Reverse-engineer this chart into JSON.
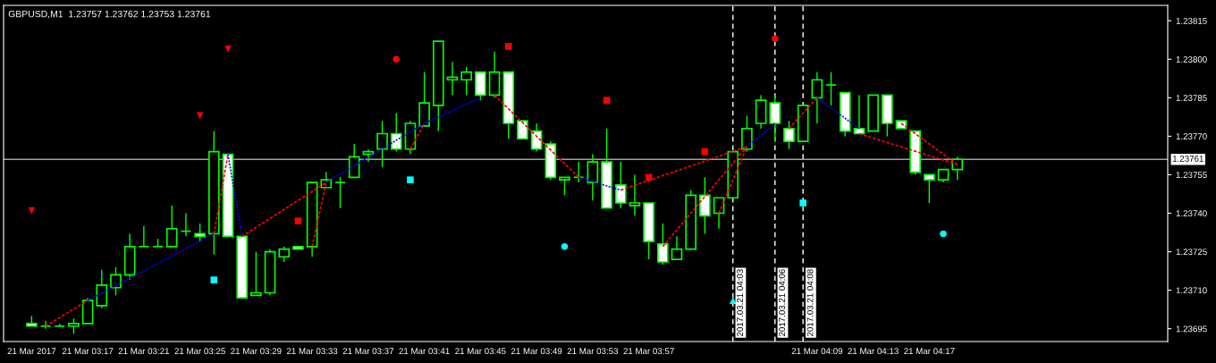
{
  "chart_data": {
    "type": "candlestick",
    "title": "GBPUSD,M1  1.23757 1.23762 1.23753 1.23761",
    "color": "#00ff00",
    "x": [
      "2017-03-21T03:13",
      "2017-03-21T03:14",
      "2017-03-21T03:15",
      "2017-03-21T03:16",
      "2017-03-21T03:17",
      "2017-03-21T03:18",
      "2017-03-21T03:19",
      "2017-03-21T03:20",
      "2017-03-21T03:21",
      "2017-03-21T03:22",
      "2017-03-21T03:23",
      "2017-03-21T03:24",
      "2017-03-21T03:25",
      "2017-03-21T03:26",
      "2017-03-21T03:27",
      "2017-03-21T03:28",
      "2017-03-21T03:29",
      "2017-03-21T03:30",
      "2017-03-21T03:31",
      "2017-03-21T03:32",
      "2017-03-21T03:33",
      "2017-03-21T03:34",
      "2017-03-21T03:35",
      "2017-03-21T03:36",
      "2017-03-21T03:37",
      "2017-03-21T03:38",
      "2017-03-21T03:39",
      "2017-03-21T03:40",
      "2017-03-21T03:41",
      "2017-03-21T03:42",
      "2017-03-21T03:43",
      "2017-03-21T03:44",
      "2017-03-21T03:45",
      "2017-03-21T03:46",
      "2017-03-21T03:47",
      "2017-03-21T03:48",
      "2017-03-21T03:49",
      "2017-03-21T03:50",
      "2017-03-21T03:51",
      "2017-03-21T03:52",
      "2017-03-21T03:53",
      "2017-03-21T03:54",
      "2017-03-21T03:55",
      "2017-03-21T03:56",
      "2017-03-21T03:57",
      "2017-03-21T03:58",
      "2017-03-21T03:59",
      "2017-03-21T04:00",
      "2017-03-21T04:01",
      "2017-03-21T04:02",
      "2017-03-21T04:03",
      "2017-03-21T04:04",
      "2017-03-21T04:05",
      "2017-03-21T04:06",
      "2017-03-21T04:07",
      "2017-03-21T04:08",
      "2017-03-21T04:09",
      "2017-03-21T04:10",
      "2017-03-21T04:11",
      "2017-03-21T04:12",
      "2017-03-21T04:13",
      "2017-03-21T04:14",
      "2017-03-21T04:15",
      "2017-03-21T04:16",
      "2017-03-21T04:17",
      "2017-03-21T04:18",
      "2017-03-21T04:19"
    ],
    "ohlc": [
      [
        1.23697,
        1.237,
        1.23696,
        1.23696
      ],
      [
        1.23696,
        1.23698,
        1.23695,
        1.23696
      ],
      [
        1.23696,
        1.23697,
        1.23696,
        1.23696
      ],
      [
        1.23696,
        1.23699,
        1.23693,
        1.23697
      ],
      [
        1.23697,
        1.23707,
        1.23697,
        1.23706
      ],
      [
        1.23704,
        1.23718,
        1.23703,
        1.23712
      ],
      [
        1.23711,
        1.23719,
        1.23708,
        1.23716
      ],
      [
        1.23716,
        1.23732,
        1.23714,
        1.23727
      ],
      [
        1.23727,
        1.23735,
        1.23727,
        1.23727
      ],
      [
        1.23727,
        1.2373,
        1.23727,
        1.23727
      ],
      [
        1.23727,
        1.23743,
        1.23727,
        1.23734
      ],
      [
        1.23733,
        1.2374,
        1.23731,
        1.23733
      ],
      [
        1.23732,
        1.23736,
        1.23729,
        1.23731
      ],
      [
        1.23732,
        1.23772,
        1.23724,
        1.23764
      ],
      [
        1.23763,
        1.23763,
        1.23731,
        1.23731
      ],
      [
        1.23731,
        1.23731,
        1.23707,
        1.23707
      ],
      [
        1.23708,
        1.23725,
        1.23708,
        1.23709
      ],
      [
        1.23709,
        1.23726,
        1.23708,
        1.23725
      ],
      [
        1.23723,
        1.23727,
        1.23721,
        1.23726
      ],
      [
        1.23727,
        1.23727,
        1.23726,
        1.23726
      ],
      [
        1.23727,
        1.23752,
        1.23723,
        1.23752
      ],
      [
        1.2375,
        1.23756,
        1.2375,
        1.23753
      ],
      [
        1.23752,
        1.23754,
        1.23742,
        1.23752
      ],
      [
        1.23754,
        1.23767,
        1.23754,
        1.23762
      ],
      [
        1.23763,
        1.23765,
        1.2376,
        1.23764
      ],
      [
        1.23765,
        1.23776,
        1.23758,
        1.23771
      ],
      [
        1.23771,
        1.23779,
        1.23764,
        1.23765
      ],
      [
        1.23765,
        1.23776,
        1.23763,
        1.23775
      ],
      [
        1.23774,
        1.23795,
        1.23774,
        1.23783
      ],
      [
        1.23782,
        1.23807,
        1.23772,
        1.23807
      ],
      [
        1.23792,
        1.23799,
        1.23786,
        1.23793
      ],
      [
        1.23792,
        1.23797,
        1.23786,
        1.23795
      ],
      [
        1.23795,
        1.23795,
        1.23784,
        1.23786
      ],
      [
        1.23786,
        1.23803,
        1.23785,
        1.23795
      ],
      [
        1.23795,
        1.23795,
        1.23769,
        1.23775
      ],
      [
        1.23776,
        1.23776,
        1.23769,
        1.23769
      ],
      [
        1.23772,
        1.23775,
        1.23764,
        1.23765
      ],
      [
        1.23767,
        1.23768,
        1.23753,
        1.23754
      ],
      [
        1.23753,
        1.23754,
        1.23747,
        1.23754
      ],
      [
        1.23754,
        1.2376,
        1.23752,
        1.23754
      ],
      [
        1.23752,
        1.23763,
        1.23745,
        1.2376
      ],
      [
        1.2376,
        1.23773,
        1.23742,
        1.23742
      ],
      [
        1.23751,
        1.2376,
        1.23742,
        1.23744
      ],
      [
        1.23743,
        1.23755,
        1.23739,
        1.23744
      ],
      [
        1.23744,
        1.23744,
        1.23722,
        1.23729
      ],
      [
        1.23728,
        1.23736,
        1.2372,
        1.23721
      ],
      [
        1.23722,
        1.23731,
        1.23722,
        1.23726
      ],
      [
        1.23726,
        1.23749,
        1.23726,
        1.23747
      ],
      [
        1.23747,
        1.23754,
        1.23732,
        1.23739
      ],
      [
        1.2374,
        1.23746,
        1.23734,
        1.23746
      ],
      [
        1.23746,
        1.23764,
        1.23746,
        1.23764
      ],
      [
        1.23765,
        1.23778,
        1.23764,
        1.23773
      ],
      [
        1.23775,
        1.23786,
        1.23773,
        1.23784
      ],
      [
        1.23783,
        1.23786,
        1.23768,
        1.23775
      ],
      [
        1.23773,
        1.23776,
        1.23765,
        1.23768
      ],
      [
        1.23768,
        1.23782,
        1.23768,
        1.23782
      ],
      [
        1.23785,
        1.23795,
        1.23775,
        1.23792
      ],
      [
        1.2379,
        1.23795,
        1.23782,
        1.2379
      ],
      [
        1.23787,
        1.23787,
        1.2377,
        1.23772
      ],
      [
        1.23773,
        1.23786,
        1.23771,
        1.23771
      ],
      [
        1.23772,
        1.23786,
        1.23772,
        1.23786
      ],
      [
        1.23786,
        1.23786,
        1.2377,
        1.23775
      ],
      [
        1.23776,
        1.23776,
        1.23773,
        1.23773
      ],
      [
        1.23772,
        1.23772,
        1.23755,
        1.23756
      ],
      [
        1.23755,
        1.23755,
        1.23744,
        1.23753
      ],
      [
        1.23753,
        1.23757,
        1.23752,
        1.23757
      ],
      [
        1.23757,
        1.23762,
        1.23753,
        1.23761
      ]
    ],
    "series": [
      {
        "type": "line",
        "color": "#ff0000",
        "line_style": "dashed",
        "x": [
          "2017-03-21T03:14",
          "2017-03-21T03:17"
        ],
        "values": [
          1.23696,
          1.23706
        ]
      },
      {
        "type": "line",
        "color": "#ff0000",
        "line_style": "dashed",
        "x": [
          "2017-03-21T03:26",
          "2017-03-21T03:27"
        ],
        "values": [
          1.23732,
          1.23763
        ]
      },
      {
        "type": "line",
        "color": "#ff0000",
        "line_style": "dashed",
        "x": [
          "2017-03-21T03:28",
          "2017-03-21T03:34"
        ],
        "values": [
          1.23731,
          1.23752
        ]
      },
      {
        "type": "line",
        "color": "#ff0000",
        "line_style": "dashed",
        "x": [
          "2017-03-21T03:33",
          "2017-03-21T03:34"
        ],
        "values": [
          1.23727,
          1.23752
        ]
      },
      {
        "type": "line",
        "color": "#ff0000",
        "line_style": "dashed",
        "x": [
          "2017-03-21T03:40",
          "2017-03-21T03:41"
        ],
        "values": [
          1.23765,
          1.23775
        ]
      },
      {
        "type": "line",
        "color": "#ff0000",
        "line_style": "dashed",
        "x": [
          "2017-03-21T03:46",
          "2017-03-21T03:52"
        ],
        "values": [
          1.23786,
          1.23754
        ]
      },
      {
        "type": "line",
        "color": "#ff0000",
        "line_style": "dashed",
        "x": [
          "2017-03-21T03:55",
          "2017-03-21T04:04"
        ],
        "values": [
          1.23749,
          1.23766
        ]
      },
      {
        "type": "line",
        "color": "#ff0000",
        "line_style": "dashed",
        "x": [
          "2017-03-21T03:58",
          "2017-03-21T04:04"
        ],
        "values": [
          1.23727,
          1.23766
        ]
      },
      {
        "type": "line",
        "color": "#ff0000",
        "line_style": "dashed",
        "x": [
          "2017-03-21T04:02",
          "2017-03-21T04:04"
        ],
        "values": [
          1.2374,
          1.23766
        ]
      },
      {
        "type": "line",
        "color": "#ff0000",
        "line_style": "dashed",
        "x": [
          "2017-03-21T04:07",
          "2017-03-21T04:09"
        ],
        "values": [
          1.23773,
          1.23785
        ]
      },
      {
        "type": "line",
        "color": "#ff0000",
        "line_style": "dashed",
        "x": [
          "2017-03-21T04:12",
          "2017-03-21T04:19"
        ],
        "values": [
          1.23771,
          1.23759
        ]
      },
      {
        "type": "line",
        "color": "#ff0000",
        "line_style": "dashed",
        "x": [
          "2017-03-21T04:15",
          "2017-03-21T04:19"
        ],
        "values": [
          1.23775,
          1.23759
        ]
      },
      {
        "type": "line",
        "color": "#0000ff",
        "line_style": "dotted",
        "x": [
          "2017-03-21T03:17",
          "2017-03-21T03:26"
        ],
        "values": [
          1.23706,
          1.23732
        ]
      },
      {
        "type": "line",
        "color": "#0000ff",
        "line_style": "dotted",
        "x": [
          "2017-03-21T03:27",
          "2017-03-21T03:28"
        ],
        "values": [
          1.23763,
          1.23731
        ]
      },
      {
        "type": "line",
        "color": "#0000ff",
        "line_style": "dotted",
        "x": [
          "2017-03-21T03:34",
          "2017-03-21T03:41",
          "2017-03-21T03:45"
        ],
        "values": [
          1.23752,
          1.23775,
          1.23785
        ]
      },
      {
        "type": "line",
        "color": "#0000ff",
        "line_style": "dotted",
        "x": [
          "2017-03-21T03:52",
          "2017-03-21T03:55"
        ],
        "values": [
          1.23754,
          1.23749
        ]
      },
      {
        "type": "line",
        "color": "#0000ff",
        "line_style": "dotted",
        "x": [
          "2017-03-21T04:04",
          "2017-03-21T04:06"
        ],
        "values": [
          1.23766,
          1.23775
        ]
      },
      {
        "type": "line",
        "color": "#0000ff",
        "line_style": "dotted",
        "x": [
          "2017-03-21T04:09",
          "2017-03-21T04:12"
        ],
        "values": [
          1.23785,
          1.23773
        ]
      },
      {
        "type": "scatter",
        "marker": "square",
        "color": "#ff0000",
        "x": [
          "2017-03-21T03:32",
          "2017-03-21T03:47",
          "2017-03-21T03:54",
          "2017-03-21T03:57",
          "2017-03-21T04:01"
        ],
        "values": [
          1.23737,
          1.23805,
          1.23784,
          1.23754,
          1.23764
        ]
      },
      {
        "type": "scatter",
        "marker": "circle",
        "color": "#ff0000",
        "x": [
          "2017-03-21T03:39",
          "2017-03-21T04:06"
        ],
        "values": [
          1.238,
          1.23808
        ]
      },
      {
        "type": "scatter",
        "marker": "square",
        "color": "#00ffff",
        "x": [
          "2017-03-21T03:26",
          "2017-03-21T03:40",
          "2017-03-21T04:08"
        ],
        "values": [
          1.23714,
          1.23753,
          1.23744
        ]
      },
      {
        "type": "scatter",
        "marker": "circle",
        "color": "#00ffff",
        "x": [
          "2017-03-21T03:51",
          "2017-03-21T04:18"
        ],
        "values": [
          1.23727,
          1.23732
        ]
      },
      {
        "type": "scatter",
        "marker": "triangle_down",
        "color": "#ff0000",
        "x": [
          "2017-03-21T03:13",
          "2017-03-21T03:25",
          "2017-03-21T03:27"
        ],
        "values": [
          1.23741,
          1.23778,
          1.23804
        ]
      },
      {
        "type": "scatter",
        "marker": "triangle",
        "color": "#00ffff",
        "x": [
          "2017-03-21T04:03"
        ],
        "values": [
          1.23706
        ]
      }
    ],
    "ref_lines": [
      {
        "axis": "y",
        "value": 1.23761,
        "label": "1.23761",
        "color": "#a0a0a0",
        "line_style": "solid"
      },
      {
        "axis": "x",
        "value": "2017-03-21T04:03",
        "label": "2017.03.21 04:03",
        "color": "#ffffff",
        "line_style": "dashed"
      },
      {
        "axis": "x",
        "value": "2017-03-21T04:06",
        "label": "2017.03.21 04:06",
        "color": "#ffffff",
        "line_style": "dashed"
      },
      {
        "axis": "x",
        "value": "2017-03-21T04:08",
        "label": "2017.03.21 04:08",
        "color": "#ffffff",
        "line_style": "dashed"
      }
    ],
    "xlim": [
      "2017-03-21T03:11",
      "2017-03-21T04:34"
    ],
    "xticks": [
      {
        "value": "2017-03-21T03:13",
        "label": "21 Mar 2017"
      },
      {
        "value": "2017-03-21T03:17",
        "label": "21 Mar 03:17"
      },
      {
        "value": "2017-03-21T03:21",
        "label": "21 Mar 03:21"
      },
      {
        "value": "2017-03-21T03:25",
        "label": "21 Mar 03:25"
      },
      {
        "value": "2017-03-21T03:29",
        "label": "21 Mar 03:29"
      },
      {
        "value": "2017-03-21T03:33",
        "label": "21 Mar 03:33"
      },
      {
        "value": "2017-03-21T03:37",
        "label": "21 Mar 03:37"
      },
      {
        "value": "2017-03-21T03:41",
        "label": "21 Mar 03:41"
      },
      {
        "value": "2017-03-21T03:45",
        "label": "21 Mar 03:45"
      },
      {
        "value": "2017-03-21T03:49",
        "label": "21 Mar 03:49"
      },
      {
        "value": "2017-03-21T03:53",
        "label": "21 Mar 03:53"
      },
      {
        "value": "2017-03-21T03:57",
        "label": "21 Mar 03:57"
      },
      {
        "value": "2017-03-21T04:09",
        "label": "21 Mar 04:09"
      },
      {
        "value": "2017-03-21T04:13",
        "label": "21 Mar 04:13"
      },
      {
        "value": "2017-03-21T04:17",
        "label": "21 Mar 04:17"
      }
    ],
    "ylim": [
      1.2369,
      1.23821
    ],
    "yticks": [
      {
        "value": 1.23695,
        "label": "1.23695"
      },
      {
        "value": 1.2371,
        "label": "1.23710"
      },
      {
        "value": 1.23725,
        "label": "1.23725"
      },
      {
        "value": 1.2374,
        "label": "1.23740"
      },
      {
        "value": 1.23755,
        "label": "1.23755"
      },
      {
        "value": 1.2377,
        "label": "1.23770"
      },
      {
        "value": 1.23785,
        "label": "1.23785"
      },
      {
        "value": 1.238,
        "label": "1.23800"
      },
      {
        "value": 1.23815,
        "label": "1.23815"
      }
    ]
  }
}
